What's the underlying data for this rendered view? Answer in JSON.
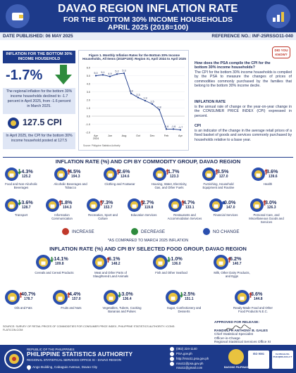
{
  "header": {
    "title": "DAVAO REGION INFLATION RATE",
    "subtitle1": "FOR THE BOTTOM 30% INCOME HOUSEHOLDS",
    "subtitle2": "APRIL 2025 (2018=100)",
    "date_published": "DATE PUBLISHED: 06 MAY 2025",
    "reference_no": "REFERENCE NO.: INF-25RSSO11-040"
  },
  "left": {
    "box_title": "INFLATION FOR THE BOTTOM 30% INCOME HOUSEHOLD",
    "rate": "-1.7%",
    "rate_para": "The regional inflation for the bottom 30% income households declined to -1.7 percent in April 2025, from -1.6 percent in March 2025.",
    "cpi_value": "127.5 CPI",
    "cpi_para": "In April 2025, the CPI for the bottom 30% income household posted at 127.5"
  },
  "chart_data": {
    "type": "line",
    "title": "Figure 1. Monthly Inflation Rates for the Bottom 30% Income Households, All Items (2018=100): Region XI, April 2024 to April 2025",
    "categories": [
      "Apr 2024",
      "May",
      "Jun",
      "Jul",
      "Aug",
      "Sep",
      "Oct",
      "Nov",
      "Dec",
      "Jan 2025",
      "Feb",
      "Mar",
      "Apr"
    ],
    "tick_labels": [
      "Apr\n2024",
      "Jun",
      "Aug",
      "Oct",
      "Dec",
      "Feb",
      "Apr"
    ],
    "values": [
      5.0,
      5.1,
      4.9,
      5.2,
      5.3,
      2.8,
      2.3,
      1.9,
      1.5,
      0.8,
      -1.6,
      -1.6,
      -1.7
    ],
    "data_labels": [
      "5.0",
      "5.1",
      "4.9",
      "5.2",
      "5.3",
      "2.8",
      "2.3",
      "1.9",
      "1.5",
      "0.8",
      "-1.6",
      "-1.6",
      "-1.7"
    ],
    "yticks": [
      "6.0",
      "5.0",
      "4.0",
      "3.0",
      "2.0",
      "1.0",
      "0.0",
      "-1.0",
      "-2.0"
    ],
    "ylim": [
      -2.0,
      6.0
    ],
    "color": "#1d3a8a",
    "source": "Source: Philippine Statistics Authority"
  },
  "right": {
    "did_you_know": "DID YOU KNOW?",
    "q_head": "How does the PSA compile the CPI for the bottom 30% income households?",
    "q_body": "The CPI for the bottom 30% income households is compiled by the PSA to measure the changes of prices of commodities commonly purchased by the families that belong to the bottom 30% income decile.",
    "infl_title": "INFLATION RATE",
    "infl_body": "is the annual rate of change or the year-on-year change in the CONSUMER PRICE INDEX (CPI) expressed in percent.",
    "cpi_title": "CPI",
    "cpi_body": "is an indicator of the change in the average retail prices of a fixed basket of goods and services commonly purchased by households relative to a base year."
  },
  "commodity": {
    "section_title": "INFLATION RATE (%) AND CPI BY COMMODITY GROUP, DAVAO REGION",
    "items": [
      {
        "pct": "-4.3%",
        "cpi": "125.2",
        "name": "Food and Non-Alcoholic Beverages",
        "dir": "down",
        "icon": "food-icon"
      },
      {
        "pct": "4.5%",
        "cpi": "194.3",
        "name": "Alcoholic Beverages and Tobacco",
        "dir": "up",
        "icon": "bottle-icon"
      },
      {
        "pct": "2.6%",
        "cpi": "124.6",
        "name": "Clothing and Footwear",
        "dir": "up",
        "icon": "shirt-icon"
      },
      {
        "pct": "1.7%",
        "cpi": "123.3",
        "name": "Housing, Water, Electricity, Gas, and Other Fuels",
        "dir": "up",
        "icon": "house-icon"
      },
      {
        "pct": "3.5%",
        "cpi": "127.0",
        "name": "Furnishing, Household Equipment and Routine",
        "dir": "up",
        "icon": "sofa-icon"
      },
      {
        "pct": "3.6%",
        "cpi": "139.6",
        "name": "Health",
        "dir": "up",
        "icon": "health-icon"
      },
      {
        "pct": "-3.6%",
        "cpi": "128.7",
        "name": "Transport",
        "dir": "down",
        "icon": "car-icon"
      },
      {
        "pct": "1.8%",
        "cpi": "104.3",
        "name": "Information Communication",
        "dir": "up",
        "icon": "phone-icon"
      },
      {
        "pct": "7.3%",
        "cpi": "153.7",
        "name": "Recreation, Sport and Culture",
        "dir": "up",
        "icon": "ball-icon"
      },
      {
        "pct": "2.7%",
        "cpi": "119.8",
        "name": "Education Services",
        "dir": "up",
        "icon": "book-icon"
      },
      {
        "pct": "4.7%",
        "cpi": "133.1",
        "name": "Restaurants and Accommodation Services",
        "dir": "up",
        "icon": "restaurant-icon"
      },
      {
        "pct": "0.0%",
        "cpi": "147.0",
        "name": "Financial Services",
        "dir": "none",
        "icon": "money-icon"
      },
      {
        "pct": "3.0%",
        "cpi": "126.3",
        "name": "Personal Care, and Miscellaneous Goods and Services",
        "dir": "up",
        "icon": "personal-care-icon"
      }
    ]
  },
  "legend": {
    "increase": "INCREASE",
    "decrease": "DECREASE",
    "no_change": "NO CHANGE",
    "note": "*AS COMPARED TO MARCH 2025 INFLATION",
    "colors": {
      "increase": "#c0392b",
      "decrease": "#2e8b3d",
      "no_change": "#2a4fae"
    }
  },
  "food": {
    "section_title": "INFLATION RATE (%) AND CPI BY SELECTED FOOD GROUP, DAVAO REGION",
    "items": [
      {
        "pct": "-14.1%",
        "cpi": "109.8",
        "name": "Cereals and Cereal Products",
        "dir": "down",
        "icon": "rice-icon"
      },
      {
        "pct": "6.1%",
        "cpi": "148.2",
        "name": "Meat and Other Parts of Slaughtered Land Animals",
        "dir": "up",
        "icon": "meat-icon"
      },
      {
        "pct": "-1.0%",
        "cpi": "136.0",
        "name": "Fish and Other Seafood",
        "dir": "down",
        "icon": "fish-icon"
      },
      {
        "pct": "5.2%",
        "cpi": "140.7",
        "name": "Milk, Other Dairy Products, and Eggs",
        "dir": "up",
        "icon": "milk-icon"
      },
      {
        "pct": "40.7%",
        "cpi": "178.7",
        "name": "Oils and Fats",
        "dir": "up",
        "icon": "oil-icon"
      },
      {
        "pct": "4.4%",
        "cpi": "157.0",
        "name": "Fruits and Nuts",
        "dir": "up",
        "icon": "fruit-icon"
      },
      {
        "pct": "-3.0%",
        "cpi": "136.4",
        "name": "Vegetables, Tubers, Cooking Bananas and Pulses",
        "dir": "down",
        "icon": "vegetable-icon"
      },
      {
        "pct": "-2.5%",
        "cpi": "151.1",
        "name": "Sugar, Confectionery and Desserts",
        "dir": "down",
        "icon": "sugar-icon"
      },
      {
        "pct": "3.6%",
        "cpi": "144.8",
        "name": "Ready-Made Food and Other Food Products N.E.C.",
        "dir": "up",
        "icon": "ready-food-icon"
      }
    ]
  },
  "source_note": "SOURCE: SURVEY OF RETAIL PRICES OF COMMODITIES FOR CONSUMER PRICE INDEX, PHILIPPINE STATISTICS AUTHORITY. ICONS: FLATICON.COM",
  "approval": {
    "label": "APPROVED FOR RELEASE:",
    "name": "RANDOLPH ANTHONY B. GALES",
    "title1": "Chief Statistical Specialist",
    "title2": "Officer-in-Charge",
    "title3": "Regional Statistical Services Office XI"
  },
  "footer": {
    "republic": "REPUBLIC OF THE PHILIPPINES",
    "agency": "PHILIPPINE STATISTICS AUTHORITY",
    "office": "REGIONAL STATISTICAL SERVICES OFFICE XI - DAVAO REGION",
    "address": "Ango Building, Cabaguio Avenue, Davao City",
    "phone": "(082) 224-1140",
    "fb": "PSA.gov.ph",
    "web": "http://rsso11.psa.gov.ph",
    "email": "rsso11@psa.gov.ph",
    "email2": "rsso11@gmail.com",
    "bagong": "BAGONG PILIPINAS",
    "iso1": "ISO 9001",
    "iso2": "Certificate No. PH11QMS-3411-3 T"
  }
}
